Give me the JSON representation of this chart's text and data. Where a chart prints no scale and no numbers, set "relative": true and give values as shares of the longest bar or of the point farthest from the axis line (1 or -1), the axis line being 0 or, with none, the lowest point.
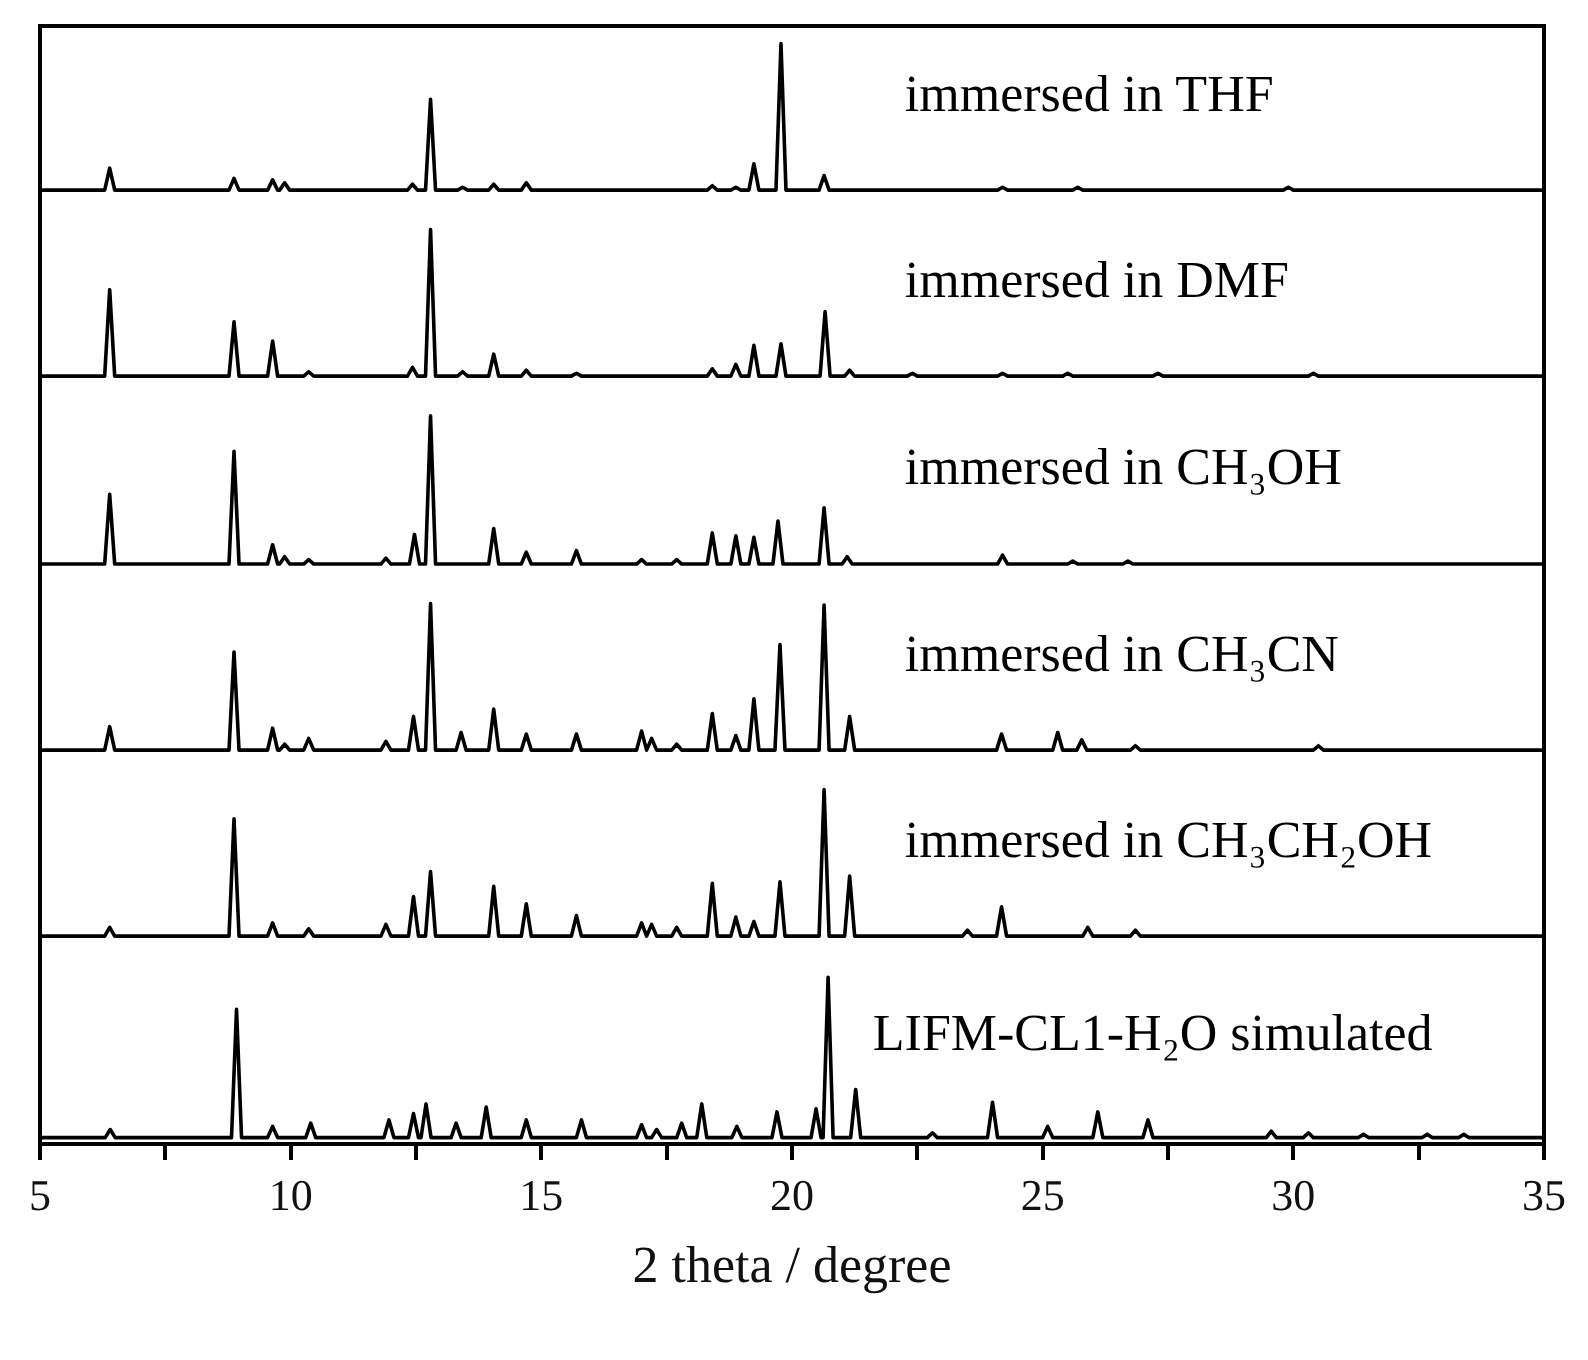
{
  "chart_data": [
    {
      "type": "line",
      "relative": true,
      "xlim": [
        5,
        35
      ],
      "tick_labels": false,
      "x": [
        5,
        6.29,
        6.39,
        6.49,
        8.77,
        8.87,
        8.97,
        9.54,
        9.64,
        9.74,
        9.78,
        9.88,
        9.98,
        12.33,
        12.43,
        12.53,
        12.69,
        12.79,
        12.89,
        13.33,
        13.43,
        13.53,
        13.95,
        14.05,
        14.15,
        14.6,
        14.7,
        14.8,
        18.31,
        18.41,
        18.51,
        18.78,
        18.88,
        18.98,
        19.14,
        19.24,
        19.34,
        19.68,
        19.78,
        19.88,
        20.54,
        20.64,
        20.74,
        24.1,
        24.2,
        24.3,
        25.6,
        25.7,
        25.8,
        29.8,
        29.9,
        30,
        35
      ],
      "series": [
        {
          "name": "immersed in THF",
          "color": "#000000",
          "values": [
            0,
            0,
            0.15,
            0,
            0,
            0.08,
            0,
            0,
            0.07,
            0,
            0,
            0.05,
            0,
            0,
            0.04,
            0,
            0,
            0.62,
            0,
            0,
            0.02,
            0,
            0,
            0.04,
            0,
            0,
            0.05,
            0,
            0,
            0.03,
            0,
            0,
            0.02,
            0,
            0,
            0.18,
            0,
            0,
            1,
            0,
            0,
            0.1,
            0,
            0,
            0.02,
            0,
            0,
            0.02,
            0,
            0,
            0.02,
            0,
            0
          ]
        }
      ]
    },
    {
      "type": "line",
      "relative": true,
      "xlim": [
        5,
        35
      ],
      "tick_labels": false,
      "x": [
        5,
        6.29,
        6.39,
        6.49,
        8.77,
        8.87,
        8.97,
        9.54,
        9.64,
        9.74,
        10.26,
        10.36,
        10.46,
        12.33,
        12.43,
        12.53,
        12.69,
        12.79,
        12.89,
        13.33,
        13.43,
        13.53,
        13.95,
        14.05,
        14.15,
        14.6,
        14.7,
        14.8,
        15.6,
        15.7,
        15.8,
        18.31,
        18.41,
        18.51,
        18.78,
        18.88,
        18.98,
        19.14,
        19.24,
        19.34,
        19.68,
        19.78,
        19.88,
        20.56,
        20.66,
        20.76,
        21.05,
        21.15,
        21.25,
        22.3,
        22.4,
        22.5,
        24.1,
        24.2,
        24.3,
        25.4,
        25.5,
        25.6,
        27.2,
        27.3,
        27.4,
        30.3,
        30.4,
        30.5,
        35
      ],
      "series": [
        {
          "name": "immersed in DMF",
          "color": "#000000",
          "values": [
            0,
            0,
            0.59,
            0,
            0,
            0.37,
            0,
            0,
            0.24,
            0,
            0,
            0.03,
            0,
            0,
            0.06,
            0,
            0,
            1,
            0,
            0,
            0.03,
            0,
            0,
            0.15,
            0,
            0,
            0.04,
            0,
            0,
            0.02,
            0,
            0,
            0.05,
            0,
            0,
            0.08,
            0,
            0,
            0.21,
            0,
            0,
            0.22,
            0,
            0,
            0.44,
            0,
            0,
            0.04,
            0,
            0,
            0.02,
            0,
            0,
            0.02,
            0,
            0,
            0.02,
            0,
            0,
            0.02,
            0,
            0,
            0.02,
            0,
            0
          ]
        }
      ]
    },
    {
      "type": "line",
      "relative": true,
      "xlim": [
        5,
        35
      ],
      "tick_labels": false,
      "x": [
        5,
        6.29,
        6.39,
        6.49,
        8.77,
        8.87,
        8.97,
        9.54,
        9.64,
        9.74,
        9.78,
        9.88,
        9.98,
        10.26,
        10.36,
        10.46,
        11.8,
        11.9,
        12,
        12.37,
        12.47,
        12.57,
        12.69,
        12.79,
        12.89,
        13.95,
        14.05,
        14.15,
        14.6,
        14.7,
        14.8,
        15.6,
        15.7,
        15.8,
        16.9,
        17,
        17.1,
        17.6,
        17.7,
        17.8,
        18.31,
        18.41,
        18.51,
        18.78,
        18.88,
        18.98,
        19.14,
        19.24,
        19.34,
        19.62,
        19.72,
        19.82,
        20.54,
        20.64,
        20.74,
        21,
        21.1,
        21.2,
        24.1,
        24.2,
        24.3,
        25.5,
        25.6,
        25.7,
        26.6,
        26.7,
        26.8,
        35
      ],
      "series": [
        {
          "name": "immersed in CH₃OH",
          "color": "#000000",
          "values": [
            0,
            0,
            0.47,
            0,
            0,
            0.76,
            0,
            0,
            0.13,
            0,
            0,
            0.05,
            0,
            0,
            0.03,
            0,
            0,
            0.04,
            0,
            0,
            0.2,
            0,
            0,
            1,
            0,
            0,
            0.24,
            0,
            0,
            0.08,
            0,
            0,
            0.09,
            0,
            0,
            0.03,
            0,
            0,
            0.03,
            0,
            0,
            0.21,
            0,
            0,
            0.19,
            0,
            0,
            0.18,
            0,
            0,
            0.29,
            0,
            0,
            0.38,
            0,
            0,
            0.05,
            0,
            0,
            0.06,
            0,
            0,
            0.02,
            0,
            0,
            0.02,
            0,
            0
          ]
        }
      ]
    },
    {
      "type": "line",
      "relative": true,
      "xlim": [
        5,
        35
      ],
      "tick_labels": false,
      "x": [
        5,
        6.29,
        6.39,
        6.49,
        8.77,
        8.87,
        8.97,
        9.54,
        9.64,
        9.74,
        9.78,
        9.88,
        9.98,
        10.26,
        10.36,
        10.46,
        11.8,
        11.9,
        12,
        12.35,
        12.45,
        12.55,
        12.69,
        12.79,
        12.89,
        13.3,
        13.4,
        13.5,
        13.95,
        14.05,
        14.15,
        14.6,
        14.7,
        14.8,
        15.6,
        15.7,
        15.8,
        16.9,
        17,
        17.1,
        17.1,
        17.2,
        17.3,
        17.6,
        17.7,
        17.8,
        18.31,
        18.41,
        18.51,
        18.78,
        18.88,
        18.98,
        19.14,
        19.24,
        19.34,
        19.66,
        19.76,
        19.86,
        20.54,
        20.64,
        20.74,
        21.05,
        21.15,
        21.25,
        24.08,
        24.18,
        24.28,
        25.2,
        25.3,
        25.4,
        25.68,
        25.78,
        25.88,
        26.75,
        26.85,
        26.95,
        30.4,
        30.5,
        30.6,
        35
      ],
      "series": [
        {
          "name": "immersed in CH₃CN",
          "color": "#000000",
          "values": [
            0,
            0,
            0.16,
            0,
            0,
            0.67,
            0,
            0,
            0.15,
            0,
            0,
            0.04,
            0,
            0,
            0.08,
            0,
            0,
            0.06,
            0,
            0,
            0.23,
            0,
            0,
            1,
            0,
            0,
            0.12,
            0,
            0,
            0.28,
            0,
            0,
            0.11,
            0,
            0,
            0.11,
            0,
            0,
            0.13,
            0,
            0,
            0.08,
            0,
            0,
            0.04,
            0,
            0,
            0.25,
            0,
            0,
            0.1,
            0,
            0,
            0.35,
            0,
            0,
            0.72,
            0,
            0,
            0.99,
            0,
            0,
            0.23,
            0,
            0,
            0.11,
            0,
            0,
            0.12,
            0,
            0,
            0.07,
            0,
            0,
            0.03,
            0,
            0,
            0.03,
            0,
            0
          ]
        }
      ]
    },
    {
      "type": "line",
      "relative": true,
      "xlim": [
        5,
        35
      ],
      "tick_labels": false,
      "x": [
        5,
        6.29,
        6.39,
        6.49,
        8.77,
        8.87,
        8.97,
        9.54,
        9.64,
        9.74,
        10.26,
        10.36,
        10.46,
        11.8,
        11.9,
        12,
        12.35,
        12.45,
        12.55,
        12.69,
        12.79,
        12.89,
        13.95,
        14.05,
        14.15,
        14.6,
        14.7,
        14.8,
        15.6,
        15.7,
        15.8,
        16.9,
        17,
        17.1,
        17.1,
        17.2,
        17.3,
        17.6,
        17.7,
        17.8,
        18.31,
        18.41,
        18.51,
        18.78,
        18.88,
        18.98,
        19.14,
        19.24,
        19.34,
        19.66,
        19.76,
        19.86,
        20.54,
        20.64,
        20.74,
        21.05,
        21.15,
        21.25,
        23.4,
        23.5,
        23.6,
        24.08,
        24.18,
        24.28,
        25.8,
        25.9,
        26,
        26.75,
        26.85,
        26.95,
        35
      ],
      "series": [
        {
          "name": "immersed in CH₃CH₂OH",
          "color": "#000000",
          "values": [
            0,
            0,
            0.06,
            0,
            0,
            0.8,
            0,
            0,
            0.09,
            0,
            0,
            0.05,
            0,
            0,
            0.08,
            0,
            0,
            0.27,
            0,
            0,
            0.44,
            0,
            0,
            0.34,
            0,
            0,
            0.22,
            0,
            0,
            0.14,
            0,
            0,
            0.09,
            0,
            0,
            0.08,
            0,
            0,
            0.06,
            0,
            0,
            0.36,
            0,
            0,
            0.13,
            0,
            0,
            0.1,
            0,
            0,
            0.37,
            0,
            0,
            1,
            0,
            0,
            0.41,
            0,
            0,
            0.04,
            0,
            0,
            0.2,
            0,
            0,
            0.06,
            0,
            0,
            0.04,
            0,
            0
          ]
        }
      ]
    },
    {
      "type": "line",
      "relative": true,
      "xlim": [
        5,
        35
      ],
      "tick_labels": "x",
      "xlabel": "2 theta / degree",
      "xticks": [
        5,
        {
          "value": 7.5,
          "label": null
        },
        10,
        {
          "value": 12.5,
          "label": null
        },
        15,
        {
          "value": 17.5,
          "label": null
        },
        20,
        {
          "value": 22.5,
          "label": null
        },
        25,
        {
          "value": 27.5,
          "label": null
        },
        30,
        {
          "value": 32.5,
          "label": null
        },
        35
      ],
      "x": [
        5,
        6.3,
        6.4,
        6.5,
        8.82,
        8.92,
        9.02,
        9.54,
        9.64,
        9.74,
        10.3,
        10.4,
        10.5,
        11.86,
        11.96,
        12.06,
        12.35,
        12.45,
        12.55,
        12.6,
        12.7,
        12.8,
        13.2,
        13.3,
        13.4,
        13.8,
        13.9,
        14,
        14.6,
        14.7,
        14.8,
        15.7,
        15.8,
        15.9,
        16.9,
        17,
        17.1,
        17.2,
        17.3,
        17.4,
        17.7,
        17.8,
        17.9,
        18.1,
        18.2,
        18.3,
        18.8,
        18.9,
        19,
        19.6,
        19.7,
        19.8,
        20.38,
        20.48,
        20.58,
        20.62,
        20.72,
        20.82,
        21.17,
        21.27,
        21.37,
        22.7,
        22.8,
        22.9,
        23.9,
        24,
        24.1,
        25,
        25.1,
        25.2,
        26,
        26.1,
        26.2,
        27,
        27.1,
        27.2,
        29.46,
        29.56,
        29.66,
        30.2,
        30.3,
        30.4,
        31.3,
        31.4,
        31.5,
        32.57,
        32.67,
        32.77,
        33.3,
        33.4,
        33.5,
        35
      ],
      "series": [
        {
          "name": "LIFM-CL1-H₂O simulated",
          "color": "#000000",
          "values": [
            0,
            0,
            0.05,
            0,
            0,
            0.8,
            0,
            0,
            0.07,
            0,
            0,
            0.09,
            0,
            0,
            0.11,
            0,
            0,
            0.15,
            0,
            0,
            0.21,
            0,
            0,
            0.09,
            0,
            0,
            0.19,
            0,
            0,
            0.11,
            0,
            0,
            0.11,
            0,
            0,
            0.08,
            0,
            0,
            0.05,
            0,
            0,
            0.09,
            0,
            0,
            0.21,
            0,
            0,
            0.07,
            0,
            0,
            0.16,
            0,
            0,
            0.18,
            0,
            0,
            1,
            0,
            0,
            0.3,
            0,
            0,
            0.03,
            0,
            0,
            0.22,
            0,
            0,
            0.07,
            0,
            0,
            0.16,
            0,
            0,
            0.11,
            0,
            0,
            0.04,
            0,
            0,
            0.03,
            0,
            0,
            0.02,
            0,
            0,
            0.02,
            0,
            0,
            0.02,
            0,
            0
          ]
        }
      ]
    }
  ]
}
